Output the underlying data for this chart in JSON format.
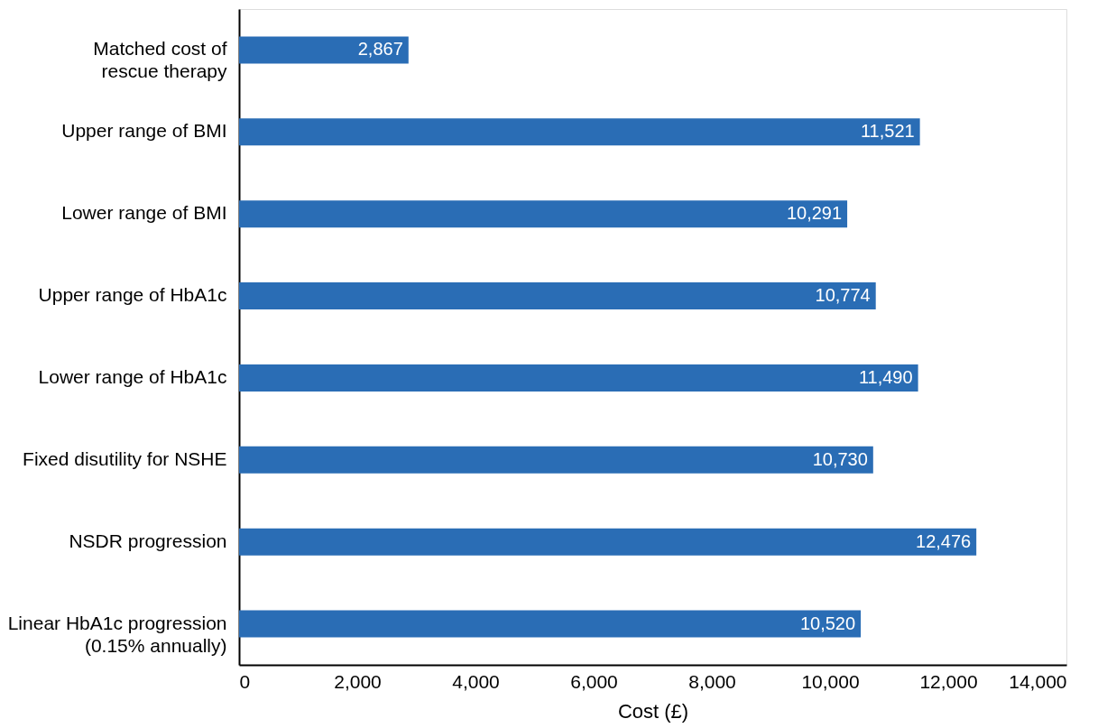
{
  "chart_data": {
    "type": "bar",
    "orientation": "horizontal",
    "xlabel": "Cost (£)",
    "categories": [
      "Matched cost of\nrescue therapy",
      "Upper range of BMI",
      "Lower range of BMI",
      "Upper range of HbA1c",
      "Lower range of HbA1c",
      "Fixed disutility for NSHE",
      "NSDR progression",
      "Linear HbA1c progression\n(0.15% annually)"
    ],
    "values": [
      2867,
      11521,
      10291,
      10774,
      11490,
      10730,
      12476,
      10520
    ],
    "value_labels": [
      "2,867",
      "11,521",
      "10,291",
      "10,774",
      "11,490",
      "10,730",
      "12,476",
      "10,520"
    ],
    "color": "#2a6db5",
    "xlim": [
      0,
      14000
    ],
    "xticks": [
      {
        "value": 0,
        "label": "0"
      },
      {
        "value": 2000,
        "label": "2,000"
      },
      {
        "value": 4000,
        "label": "4,000"
      },
      {
        "value": 6000,
        "label": "6,000"
      },
      {
        "value": 8000,
        "label": "8,000"
      },
      {
        "value": 10000,
        "label": "10,000"
      },
      {
        "value": 12000,
        "label": "12,000"
      },
      {
        "value": 14000,
        "label": "14,000"
      }
    ]
  }
}
